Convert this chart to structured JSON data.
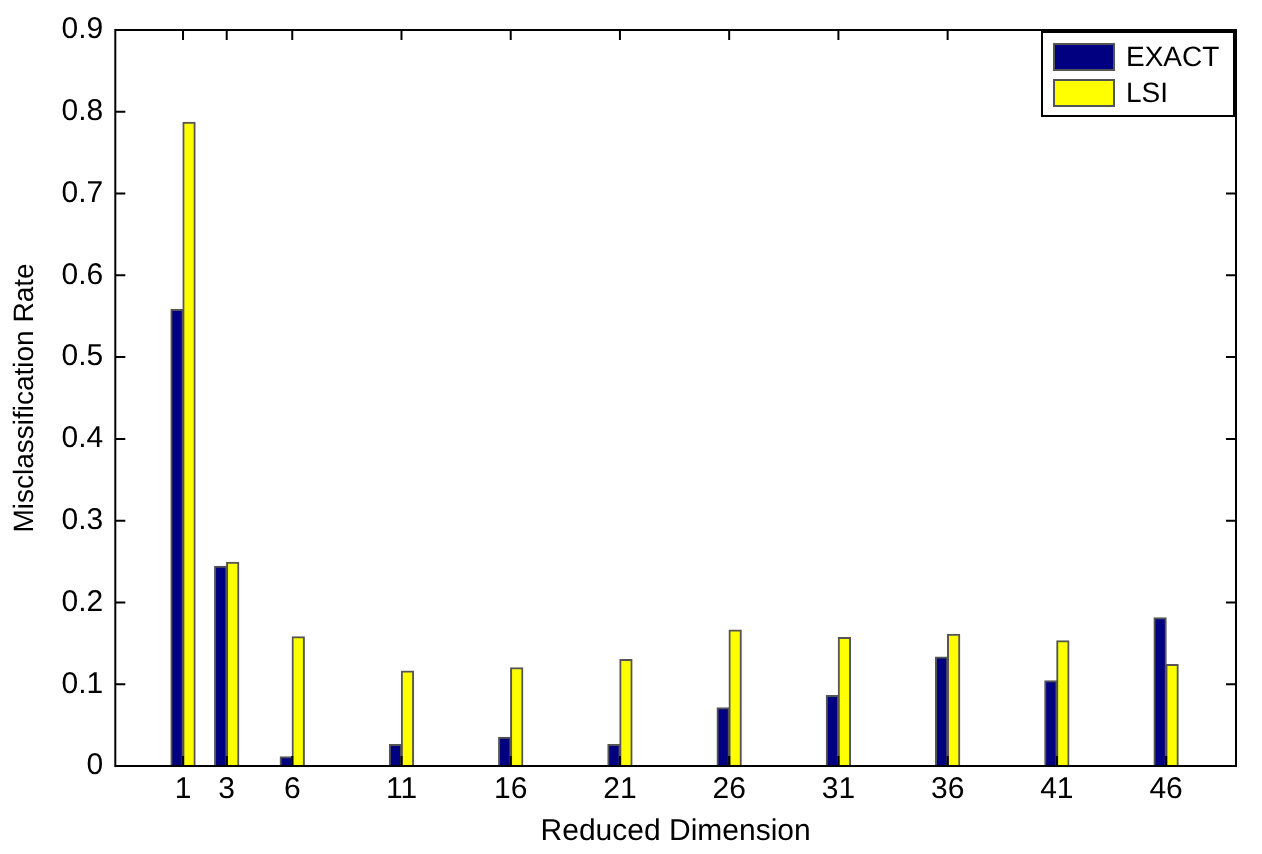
{
  "chart_data": {
    "type": "bar",
    "xlabel": "Reduced Dimension",
    "ylabel": "Misclassification Rate",
    "x": [
      1,
      3,
      6,
      11,
      16,
      21,
      26,
      31,
      36,
      41,
      46
    ],
    "series": [
      {
        "name": "EXACT",
        "color": "#000080",
        "values": [
          0.558,
          0.244,
          0.011,
          0.026,
          0.035,
          0.026,
          0.071,
          0.086,
          0.133,
          0.104,
          0.181
        ]
      },
      {
        "name": "LSI",
        "color": "#ffff00",
        "values": [
          0.787,
          0.249,
          0.158,
          0.116,
          0.12,
          0.13,
          0.166,
          0.157,
          0.161,
          0.153,
          0.124
        ]
      }
    ],
    "xlim": [
      -2.1,
      49.2
    ],
    "xticks": [
      1,
      3,
      6,
      11,
      16,
      21,
      26,
      31,
      36,
      41,
      46
    ],
    "ylim": [
      0,
      0.9
    ],
    "yticks": [
      0,
      0.1,
      0.2,
      0.3,
      0.4,
      0.5,
      0.6,
      0.7,
      0.8,
      0.9
    ],
    "grid": false,
    "legend": "top right"
  }
}
